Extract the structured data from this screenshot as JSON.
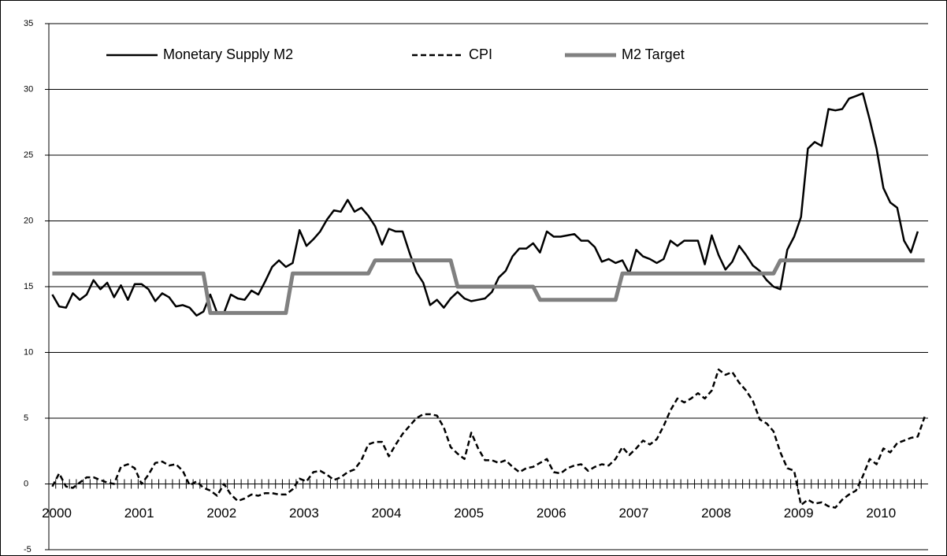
{
  "chart_data": {
    "type": "line",
    "categories": [
      "2000",
      null,
      null,
      null,
      null,
      null,
      null,
      null,
      null,
      null,
      null,
      null,
      "2001",
      null,
      null,
      null,
      null,
      null,
      null,
      null,
      null,
      null,
      null,
      null,
      "2002",
      null,
      null,
      null,
      null,
      null,
      null,
      null,
      null,
      null,
      null,
      null,
      "2003",
      null,
      null,
      null,
      null,
      null,
      null,
      null,
      null,
      null,
      null,
      null,
      "2004",
      null,
      null,
      null,
      null,
      null,
      null,
      null,
      null,
      null,
      null,
      null,
      "2005",
      null,
      null,
      null,
      null,
      null,
      null,
      null,
      null,
      null,
      null,
      null,
      "2006",
      null,
      null,
      null,
      null,
      null,
      null,
      null,
      null,
      null,
      null,
      null,
      "2007",
      null,
      null,
      null,
      null,
      null,
      null,
      null,
      null,
      null,
      null,
      null,
      "2008",
      null,
      null,
      null,
      null,
      null,
      null,
      null,
      null,
      null,
      null,
      null,
      "2009",
      null,
      null,
      null,
      null,
      null,
      null,
      null,
      null,
      null,
      null,
      null,
      "2010",
      null,
      null,
      null,
      null,
      null,
      null,
      null
    ],
    "series": [
      {
        "name": "Monetary Supply M2",
        "color": "#000000",
        "line_style": "solid",
        "values": [
          14.4,
          13.5,
          13.4,
          14.5,
          14.0,
          14.4,
          15.5,
          14.8,
          15.3,
          14.2,
          15.1,
          14.0,
          15.2,
          15.2,
          14.8,
          13.9,
          14.5,
          14.2,
          13.5,
          13.6,
          13.4,
          12.8,
          13.1,
          14.4,
          13.0,
          13.0,
          14.4,
          14.1,
          14.0,
          14.7,
          14.4,
          15.4,
          16.5,
          17.0,
          16.5,
          16.8,
          19.3,
          18.1,
          18.6,
          19.2,
          20.1,
          20.8,
          20.7,
          21.6,
          20.7,
          21.0,
          20.4,
          19.6,
          18.2,
          19.4,
          19.2,
          19.2,
          17.6,
          16.1,
          15.3,
          13.6,
          14.0,
          13.4,
          14.1,
          14.6,
          14.1,
          13.9,
          14.0,
          14.1,
          14.6,
          15.7,
          16.2,
          17.3,
          17.9,
          17.9,
          18.3,
          17.6,
          19.2,
          18.8,
          18.8,
          18.9,
          19.0,
          18.5,
          18.5,
          18.0,
          16.9,
          17.1,
          16.8,
          17.0,
          16.0,
          17.8,
          17.3,
          17.1,
          16.8,
          17.1,
          18.5,
          18.1,
          18.5,
          18.5,
          18.5,
          16.7,
          18.9,
          17.4,
          16.3,
          16.9,
          18.1,
          17.4,
          16.6,
          16.2,
          15.5,
          15.0,
          14.8,
          17.8,
          18.8,
          20.3,
          25.5,
          26.0,
          25.7,
          28.5,
          28.4,
          28.5,
          29.3,
          29.5,
          29.7,
          27.7,
          25.5,
          22.5,
          21.4,
          21.0,
          18.5,
          17.6,
          19.2,
          null
        ]
      },
      {
        "name": "CPI",
        "color": "#000000",
        "line_style": "dashed",
        "values": [
          -0.2,
          0.8,
          -0.2,
          -0.3,
          0.1,
          0.5,
          0.5,
          0.3,
          0.1,
          0.0,
          1.3,
          1.5,
          1.2,
          0.0,
          0.7,
          1.6,
          1.7,
          1.4,
          1.5,
          1.0,
          -0.1,
          0.2,
          -0.3,
          -0.5,
          -0.9,
          0.0,
          -0.8,
          -1.3,
          -1.1,
          -0.8,
          -0.9,
          -0.7,
          -0.7,
          -0.8,
          -0.8,
          -0.4,
          0.4,
          0.2,
          0.9,
          1.0,
          0.7,
          0.3,
          0.5,
          0.9,
          1.1,
          1.8,
          3.0,
          3.2,
          3.2,
          2.1,
          3.0,
          3.8,
          4.4,
          5.0,
          5.3,
          5.3,
          5.2,
          4.3,
          2.8,
          2.3,
          1.9,
          3.9,
          2.7,
          1.8,
          1.8,
          1.6,
          1.8,
          1.3,
          0.9,
          1.2,
          1.3,
          1.6,
          1.9,
          0.9,
          0.8,
          1.2,
          1.4,
          1.5,
          1.0,
          1.3,
          1.5,
          1.4,
          1.9,
          2.8,
          2.2,
          2.7,
          3.3,
          3.0,
          3.4,
          4.4,
          5.6,
          6.5,
          6.2,
          6.5,
          6.9,
          6.5,
          7.1,
          8.7,
          8.3,
          8.5,
          7.7,
          7.1,
          6.3,
          4.9,
          4.6,
          4.0,
          2.4,
          1.2,
          1.0,
          -1.6,
          -1.2,
          -1.5,
          -1.4,
          -1.7,
          -1.8,
          -1.2,
          -0.8,
          -0.5,
          0.6,
          1.9,
          1.5,
          2.7,
          2.4,
          3.1,
          3.3,
          3.5,
          3.6,
          5.1
        ]
      },
      {
        "name": "M2 Target",
        "color": "#808080",
        "line_style": "thick",
        "values": [
          16,
          16,
          16,
          16,
          16,
          16,
          16,
          16,
          16,
          16,
          16,
          16,
          16,
          16,
          16,
          16,
          16,
          16,
          16,
          16,
          16,
          16,
          16,
          13,
          13,
          13,
          13,
          13,
          13,
          13,
          13,
          13,
          13,
          13,
          13,
          16,
          16,
          16,
          16,
          16,
          16,
          16,
          16,
          16,
          16,
          16,
          16,
          17,
          17,
          17,
          17,
          17,
          17,
          17,
          17,
          17,
          17,
          17,
          17,
          15,
          15,
          15,
          15,
          15,
          15,
          15,
          15,
          15,
          15,
          15,
          15,
          14,
          14,
          14,
          14,
          14,
          14,
          14,
          14,
          14,
          14,
          14,
          14,
          16,
          16,
          16,
          16,
          16,
          16,
          16,
          16,
          16,
          16,
          16,
          16,
          16,
          16,
          16,
          16,
          16,
          16,
          16,
          16,
          16,
          16,
          16,
          17,
          17,
          17,
          17,
          17,
          17,
          17,
          17,
          17,
          17,
          17,
          17,
          17,
          17,
          17,
          17,
          17,
          17,
          17,
          17,
          17,
          17
        ]
      }
    ],
    "ylim": [
      -5,
      35
    ],
    "yticks": [
      -5,
      0,
      5,
      10,
      15,
      20,
      25,
      30,
      35
    ],
    "grid": true
  }
}
